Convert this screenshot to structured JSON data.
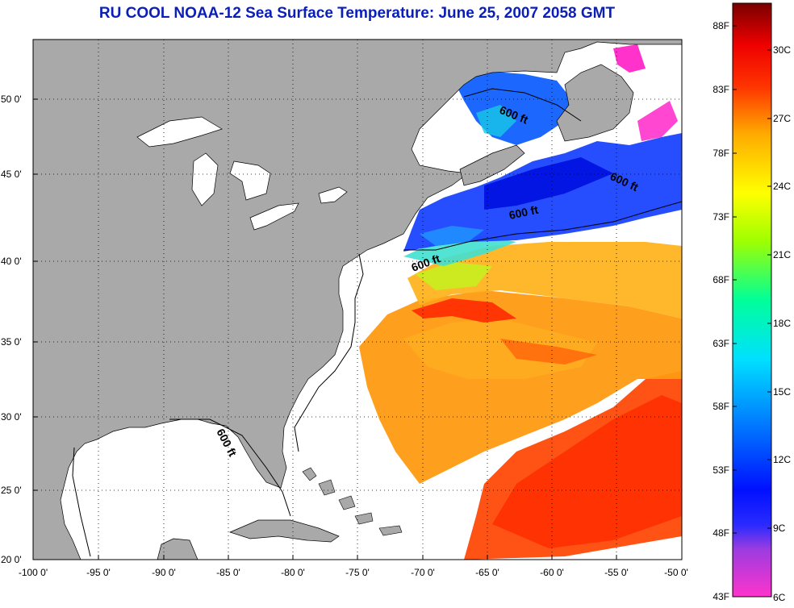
{
  "title": "RU COOL  NOAA-12  Sea Surface Temperature:  June 25, 2007 2058 GMT",
  "map": {
    "lon_ticks": [
      "-100 0'",
      "-95 0'",
      "-90 0'",
      "-85 0'",
      "-80 0'",
      "-75 0'",
      "-70 0'",
      "-65 0'",
      "-60 0'",
      "-55 0'",
      "-50 0'"
    ],
    "lat_ticks": [
      "50 0'",
      "45 0'",
      "40 0'",
      "35 0'",
      "30 0'",
      "25 0'",
      "20 0'"
    ],
    "lon_range": [
      -100,
      -50
    ],
    "lat_range": [
      20,
      52.3
    ],
    "grid": "dotted",
    "contour_labels": [
      "600 ft",
      "600 ft",
      "600 ft",
      "600 ft",
      "600 ft"
    ]
  },
  "colorbar": {
    "fahrenheit_labels": [
      "88F",
      "83F",
      "78F",
      "73F",
      "68F",
      "63F",
      "58F",
      "53F",
      "48F",
      "43F"
    ],
    "celsius_labels": [
      "30C",
      "27C",
      "24C",
      "21C",
      "18C",
      "15C",
      "12C",
      "9C",
      "6C"
    ],
    "range_c": [
      6,
      32
    ],
    "colors": [
      "#ff33cc",
      "#8a2be2",
      "#0000ff",
      "#0096ff",
      "#00e5ff",
      "#00ff66",
      "#ffff00",
      "#ff9900",
      "#ff0000",
      "#7a0000"
    ]
  },
  "colors": {
    "land": "#a9a9a9",
    "ocean_no_data": "#ffffff",
    "title": "#0a1fb8"
  }
}
